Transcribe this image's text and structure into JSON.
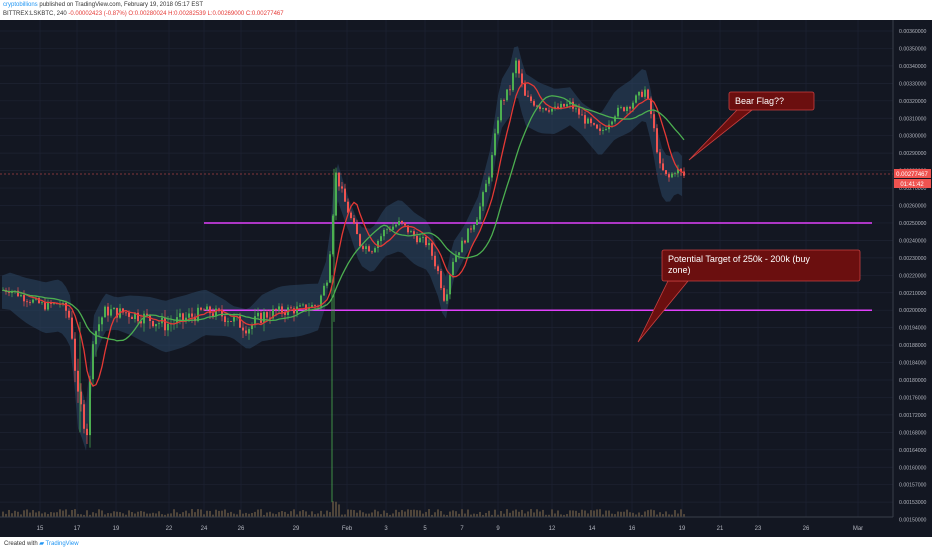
{
  "header": {
    "username": "cryptobillions",
    "published": "published on TradingView.com, February 19, 2018 05:17 EST",
    "symbol": "BITTREX:LSKBTC, 240",
    "change": "-0.00002423 (-0.87%)",
    "ohlc_o": "O:0.00280024",
    "ohlc_h": "H:0.00282539",
    "ohlc_l": "L:0.00269000",
    "ohlc_c": "C:0.00277467"
  },
  "footer": {
    "created_with": "Created with",
    "brand": "TradingView"
  },
  "colors": {
    "background": "#131722",
    "grid": "#1e2333",
    "up": "#4caf50",
    "down": "#ef5350",
    "band": "#2b4764",
    "ma_red": "#e53935",
    "ma_green": "#4caf50",
    "support_line": "#e040fb",
    "annotation_fill": "#6b0f0f"
  },
  "chart_data": {
    "type": "candlestick",
    "price_ticks": [
      "0.00360000",
      "0.00350000",
      "0.00340000",
      "0.00330000",
      "0.00320000",
      "0.00310000",
      "0.00300000",
      "0.00290000",
      "0.00280000",
      "0.00270000",
      "0.00260000",
      "0.00250000",
      "0.00240000",
      "0.00230000",
      "0.00220000",
      "0.00210000",
      "0.00200000",
      "0.00194000",
      "0.00188000",
      "0.00184000",
      "0.00180000",
      "0.00176000",
      "0.00172000",
      "0.00168000",
      "0.00164000",
      "0.00160000",
      "0.00157000",
      "0.00153000",
      "0.00150000"
    ],
    "x_ticks": [
      "15",
      "17",
      "19",
      "22",
      "24",
      "26",
      "29",
      "Feb",
      "3",
      "5",
      "7",
      "9",
      "12",
      "14",
      "16",
      "19",
      "21",
      "23",
      "26",
      "Mar"
    ],
    "last_price_label": "0.00277467",
    "countdown_label": "01:41:42",
    "levels": [
      0.0025,
      0.002
    ],
    "level_lines": [
      {
        "value": 0.0025,
        "from": "24",
        "to": "Mar"
      },
      {
        "value": 0.002,
        "from": "24",
        "to": "Mar"
      }
    ],
    "annotations": [
      {
        "text": "Bear Flag??",
        "points_to": "19"
      },
      {
        "text": "Potential Target of 250k - 200k (buy zone)",
        "points_to": "19"
      }
    ],
    "overlays": [
      "bollinger band",
      "red moving average",
      "green moving average"
    ],
    "volume_bars": true,
    "grid": true
  }
}
